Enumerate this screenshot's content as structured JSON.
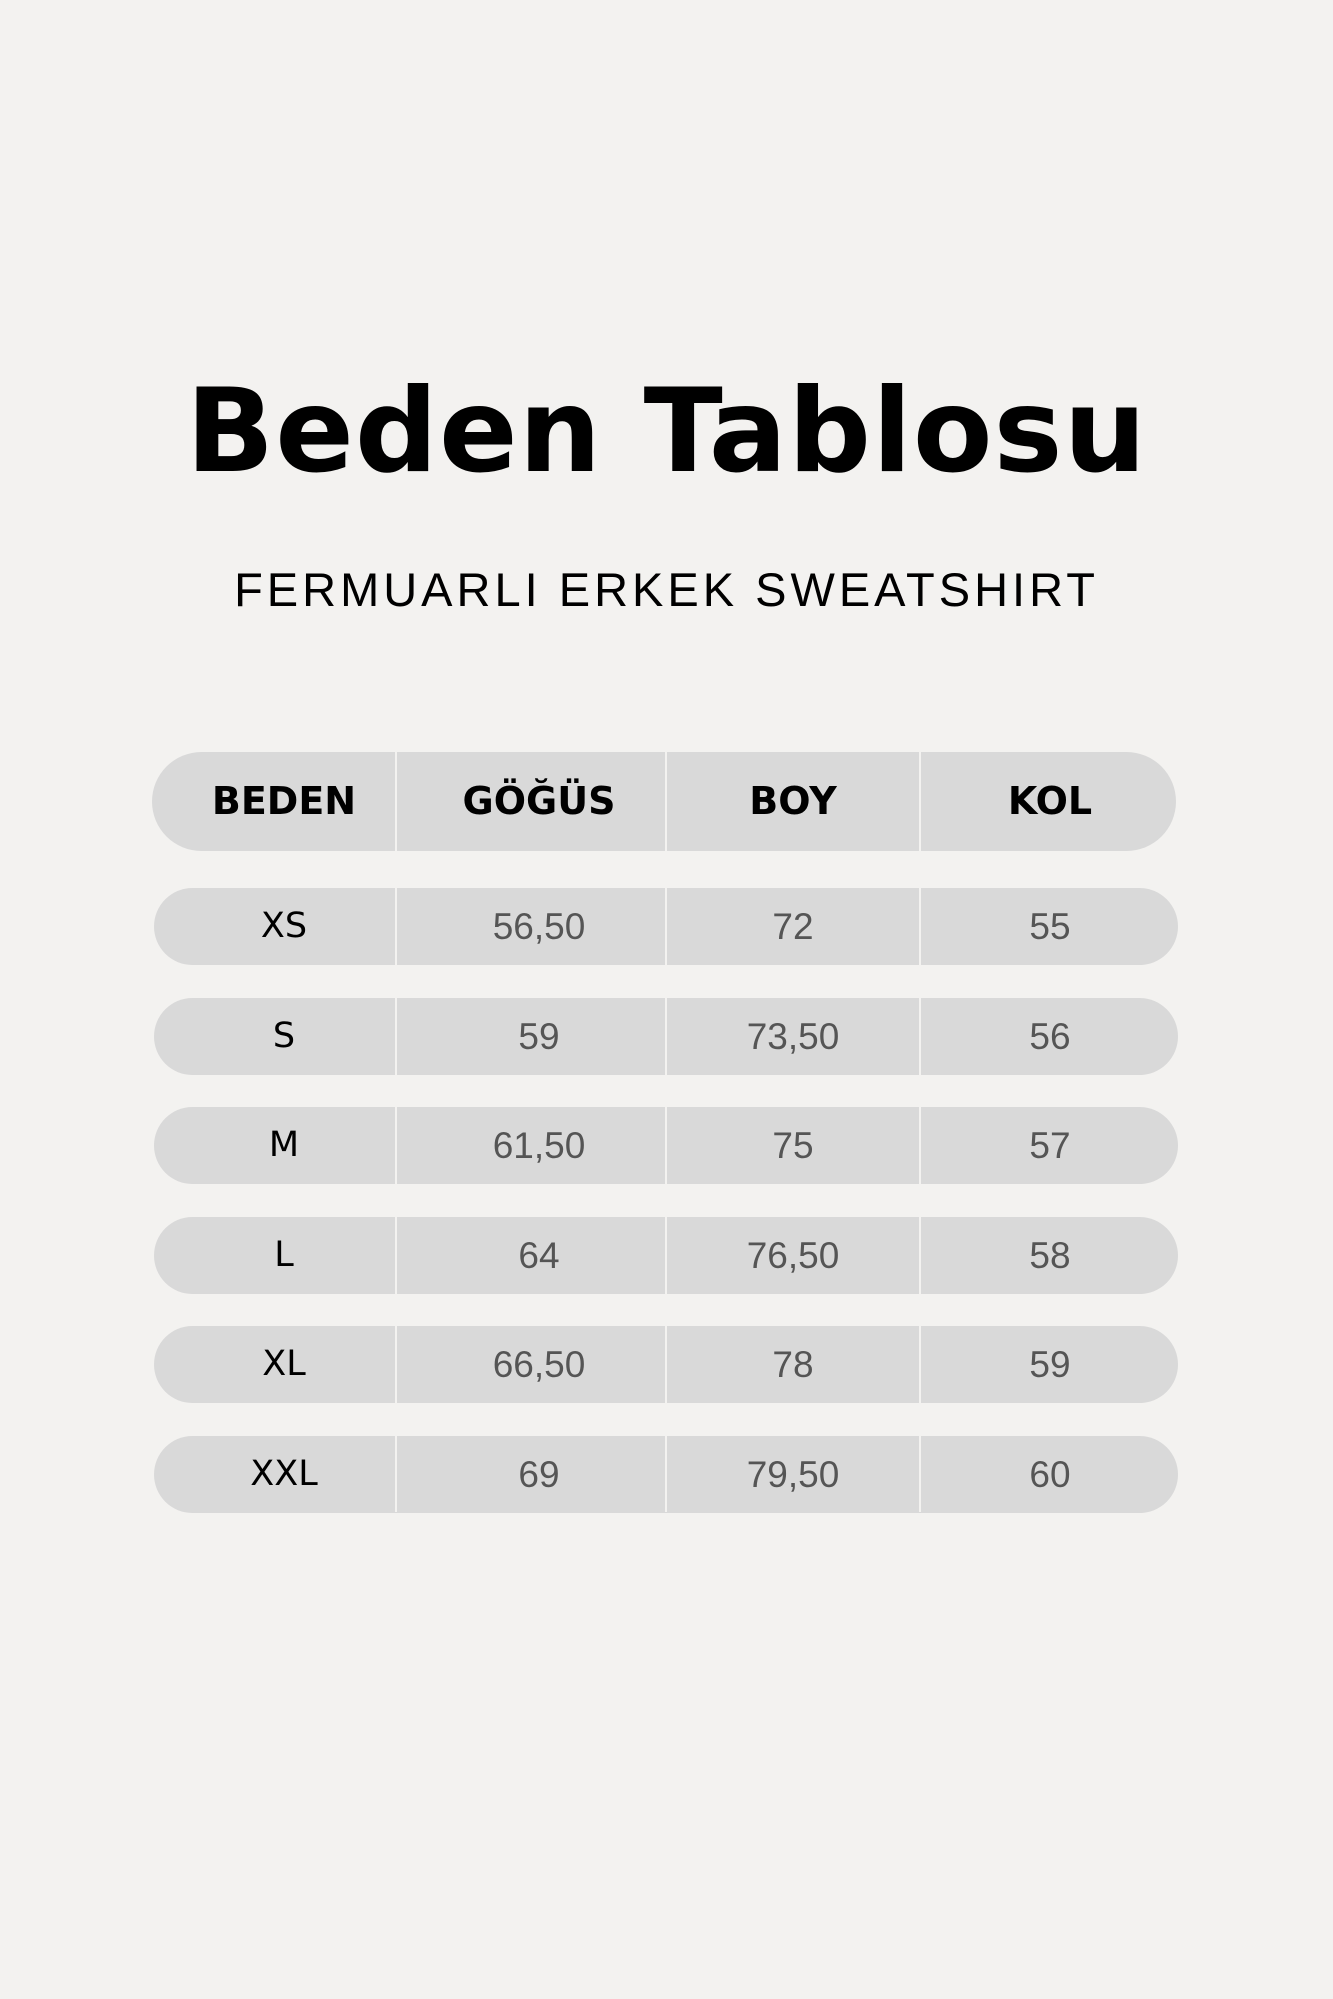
{
  "title": "Beden Tablosu",
  "subtitle": "FERMUARLI ERKEK SWEATSHIRT",
  "table": {
    "headers": [
      "BEDEN",
      "GÖĞÜS",
      "BOY",
      "KOL"
    ],
    "rows": [
      [
        "XS",
        "56,50",
        "72",
        "55"
      ],
      [
        "S",
        "59",
        "73,50",
        "56"
      ],
      [
        "M",
        "61,50",
        "75",
        "57"
      ],
      [
        "L",
        "64",
        "76,50",
        "58"
      ],
      [
        "XL",
        "66,50",
        "78",
        "59"
      ],
      [
        "XXL",
        "69",
        "79,50",
        "60"
      ]
    ]
  },
  "colors": {
    "background": "#f3f2f0",
    "pill": "#d9d9d9",
    "value_text": "#555555"
  }
}
